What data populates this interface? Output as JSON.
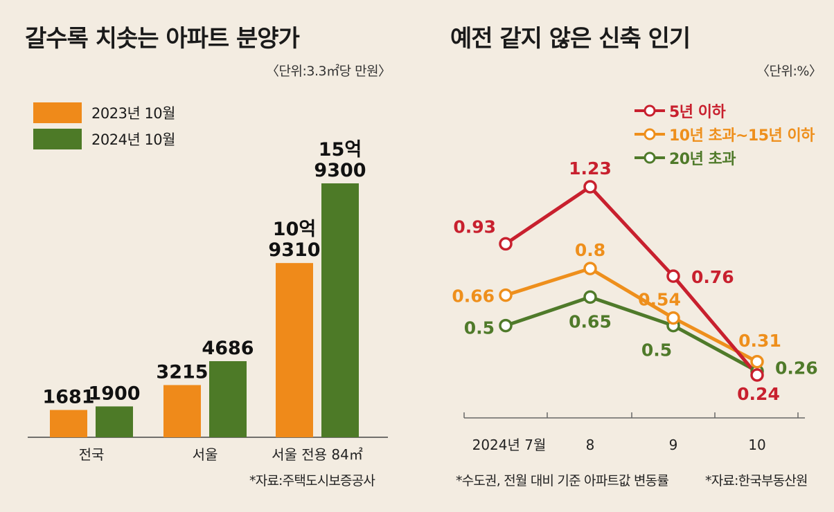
{
  "left": {
    "title": "갈수록 치솟는 아파트 분양가",
    "unit": "〈단위:3.3㎡당 만원〉",
    "source": "*자료:주택도시보증공사"
  },
  "right": {
    "title": "예전 같지 않은 신축 인기",
    "unit": "〈단위:%〉",
    "note": "*수도권, 전월 대비 기준 아파트값 변동률",
    "source": "*자료:한국부동산원"
  },
  "colors": {
    "background": "#f3ece1",
    "orange": "#ef8a1a",
    "green": "#4d7a27",
    "red": "#c8202e",
    "line_orange": "#ee8f1c",
    "line_green": "#4f7a2a"
  },
  "chart_data": [
    {
      "type": "bar",
      "title": "갈수록 치솟는 아파트 분양가",
      "categories": [
        "전국",
        "서울",
        "서울 전용 84㎡"
      ],
      "series": [
        {
          "name": "2023년 10월",
          "values": [
            1681,
            3215,
            109310
          ],
          "labels": [
            "1681",
            "3215",
            "10억\n9310"
          ]
        },
        {
          "name": "2024년 10월",
          "values": [
            1900,
            4686,
            159300
          ],
          "labels": [
            "1900",
            "4686",
            "15억\n9300"
          ]
        }
      ]
    },
    {
      "type": "line",
      "title": "예전 같지 않은 신축 인기",
      "x": [
        "2024년 7월",
        "8",
        "9",
        "10"
      ],
      "series": [
        {
          "name": "5년 이하",
          "values": [
            0.93,
            1.23,
            0.76,
            0.24
          ]
        },
        {
          "name": "10년 초과~15년 이하",
          "values": [
            0.66,
            0.8,
            0.54,
            0.31
          ]
        },
        {
          "name": "20년 초과",
          "values": [
            0.5,
            0.65,
            0.5,
            0.26
          ]
        }
      ]
    }
  ]
}
